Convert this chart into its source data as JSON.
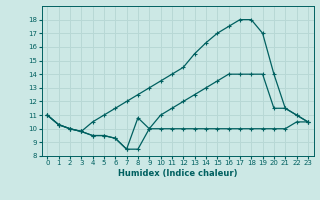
{
  "xlabel": "Humidex (Indice chaleur)",
  "bg_color": "#cce8e5",
  "grid_color": "#b8d8d5",
  "line_color": "#006060",
  "xlim": [
    -0.5,
    23.5
  ],
  "ylim": [
    8,
    19
  ],
  "xticks": [
    0,
    1,
    2,
    3,
    4,
    5,
    6,
    7,
    8,
    9,
    10,
    11,
    12,
    13,
    14,
    15,
    16,
    17,
    18,
    19,
    20,
    21,
    22,
    23
  ],
  "yticks": [
    8,
    9,
    10,
    11,
    12,
    13,
    14,
    15,
    16,
    17,
    18
  ],
  "line1_x": [
    0,
    1,
    2,
    3,
    4,
    5,
    6,
    7,
    8,
    9,
    10,
    11,
    12,
    13,
    14,
    15,
    16,
    17,
    18,
    19,
    20,
    21,
    22,
    23
  ],
  "line1_y": [
    11,
    10.3,
    10,
    9.8,
    9.5,
    9.5,
    9.3,
    8.5,
    8.5,
    10,
    10,
    10,
    10,
    10,
    10,
    10,
    10,
    10,
    10,
    10,
    10,
    10,
    10.5,
    10.5
  ],
  "line2_x": [
    0,
    1,
    2,
    3,
    4,
    5,
    6,
    7,
    8,
    9,
    10,
    11,
    12,
    13,
    14,
    15,
    16,
    17,
    18,
    19,
    20,
    21,
    22,
    23
  ],
  "line2_y": [
    11,
    10.3,
    10,
    9.8,
    9.5,
    9.5,
    9.3,
    8.5,
    10.8,
    10,
    11,
    11.5,
    12,
    12.5,
    13,
    13.5,
    14,
    14,
    14,
    14,
    11.5,
    11.5,
    11,
    10.5
  ],
  "line3_x": [
    0,
    1,
    2,
    3,
    4,
    5,
    6,
    7,
    8,
    9,
    10,
    11,
    12,
    13,
    14,
    15,
    16,
    17,
    18,
    19,
    20,
    21,
    22,
    23
  ],
  "line3_y": [
    11,
    10.3,
    10,
    9.8,
    10.5,
    11,
    11.5,
    12,
    12.5,
    13,
    13.5,
    14,
    14.5,
    15.5,
    16.3,
    17,
    17.5,
    18,
    18,
    17,
    14,
    11.5,
    11,
    10.5
  ]
}
